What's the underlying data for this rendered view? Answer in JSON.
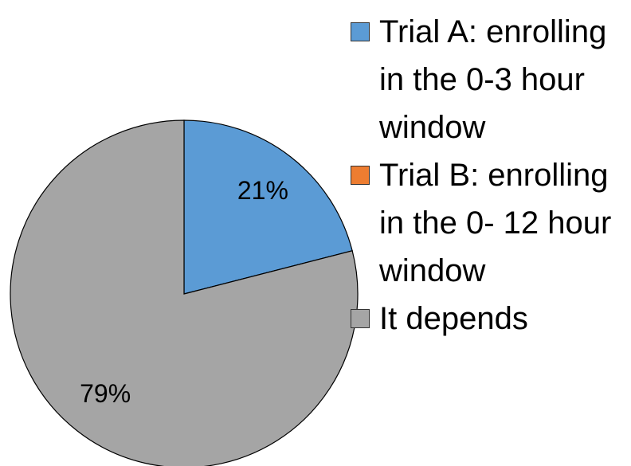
{
  "chart_data": {
    "type": "pie",
    "categories": [
      "Trial A: enrolling in the 0-3 hour window",
      "Trial B: enrolling in the 0- 12 hour window",
      "It depends"
    ],
    "values": [
      21,
      0,
      79
    ],
    "value_labels": [
      "21%",
      null,
      "79%"
    ],
    "colors": [
      "#5b9bd5",
      "#ed7d31",
      "#a5a5a5"
    ],
    "legend": "right"
  }
}
